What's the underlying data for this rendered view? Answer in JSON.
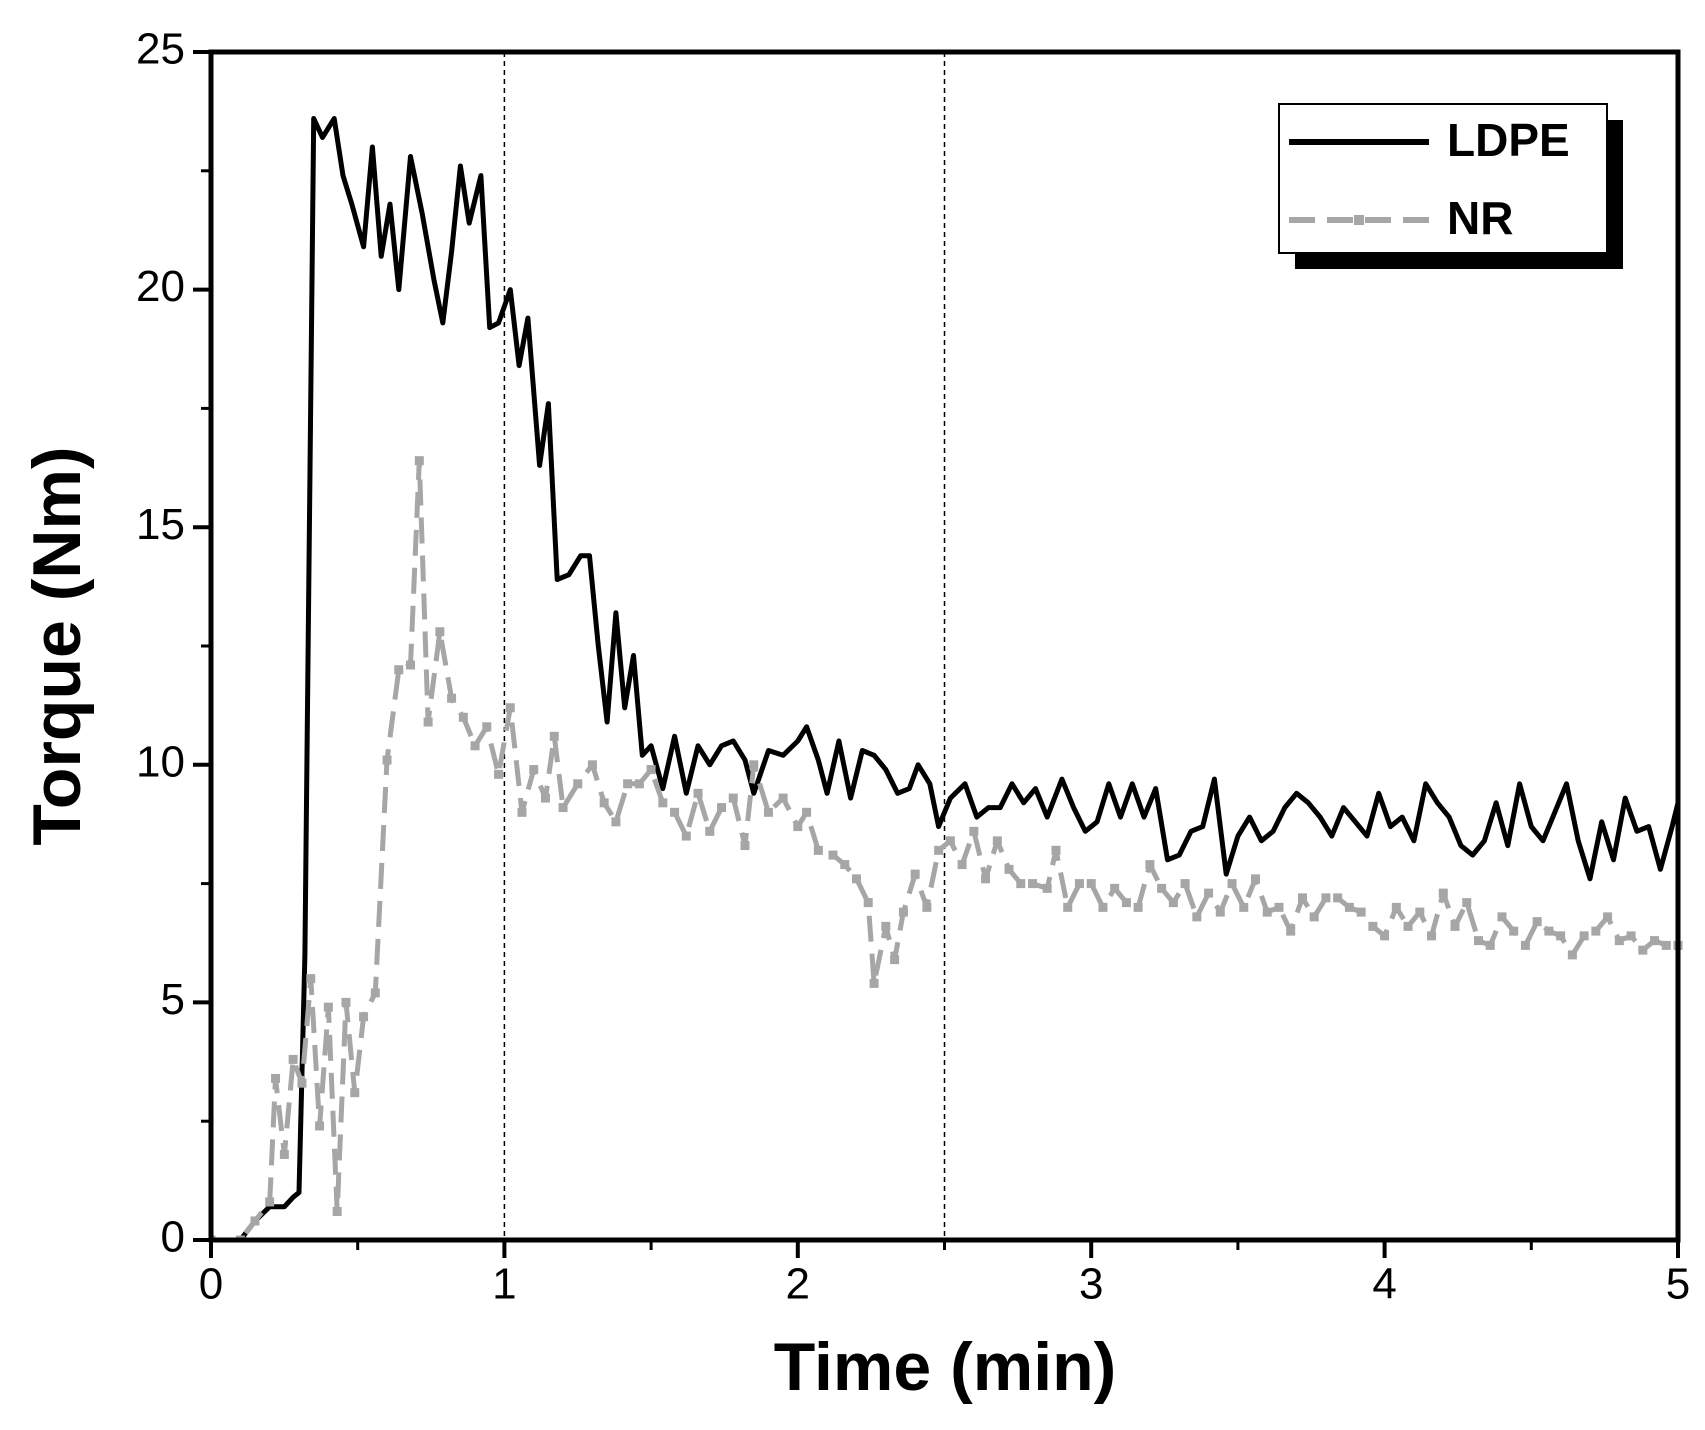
{
  "chart_data": {
    "type": "line",
    "x_label": "Time (min)",
    "y_label": "Torque (Nm)",
    "xlim": [
      0,
      5
    ],
    "ylim": [
      0,
      25
    ],
    "xticks": [
      0,
      1,
      2,
      3,
      4,
      5
    ],
    "yticks": [
      0,
      5,
      10,
      15,
      20,
      25
    ],
    "reference_lines_x": [
      1,
      2.5
    ],
    "legend": "upper right",
    "series": [
      {
        "name": "LDPE",
        "color": "#000000",
        "style": "solid",
        "markers": false,
        "x": [
          0.1,
          0.15,
          0.2,
          0.25,
          0.28,
          0.3,
          0.32,
          0.35,
          0.38,
          0.42,
          0.45,
          0.48,
          0.52,
          0.55,
          0.58,
          0.61,
          0.64,
          0.68,
          0.72,
          0.76,
          0.79,
          0.82,
          0.85,
          0.88,
          0.92,
          0.95,
          0.98,
          1.02,
          1.05,
          1.08,
          1.12,
          1.15,
          1.18,
          1.22,
          1.26,
          1.29,
          1.32,
          1.35,
          1.38,
          1.41,
          1.44,
          1.47,
          1.5,
          1.54,
          1.58,
          1.62,
          1.66,
          1.7,
          1.74,
          1.78,
          1.82,
          1.85,
          1.9,
          1.95,
          2.0,
          2.03,
          2.07,
          2.1,
          2.14,
          2.18,
          2.22,
          2.26,
          2.3,
          2.34,
          2.38,
          2.41,
          2.45,
          2.48,
          2.52,
          2.57,
          2.61,
          2.65,
          2.69,
          2.73,
          2.77,
          2.81,
          2.85,
          2.9,
          2.94,
          2.98,
          3.02,
          3.06,
          3.1,
          3.14,
          3.18,
          3.22,
          3.26,
          3.3,
          3.34,
          3.38,
          3.42,
          3.46,
          3.5,
          3.54,
          3.58,
          3.62,
          3.66,
          3.7,
          3.74,
          3.78,
          3.82,
          3.86,
          3.9,
          3.94,
          3.98,
          4.02,
          4.06,
          4.1,
          4.14,
          4.18,
          4.22,
          4.26,
          4.3,
          4.34,
          4.38,
          4.42,
          4.46,
          4.5,
          4.54,
          4.58,
          4.62,
          4.66,
          4.7,
          4.74,
          4.78,
          4.82,
          4.86,
          4.9,
          4.94,
          4.98,
          5.0
        ],
        "values": [
          0,
          0.4,
          0.7,
          0.7,
          0.9,
          1.0,
          6,
          23.6,
          23.2,
          23.6,
          22.4,
          21.8,
          20.9,
          23.0,
          20.7,
          21.8,
          20.0,
          22.8,
          21.6,
          20.2,
          19.3,
          20.8,
          22.6,
          21.4,
          22.4,
          19.2,
          19.3,
          20.0,
          18.4,
          19.4,
          16.3,
          17.6,
          13.9,
          14.0,
          14.4,
          14.4,
          12.5,
          10.9,
          13.2,
          11.2,
          12.3,
          10.2,
          10.4,
          9.5,
          10.6,
          9.4,
          10.4,
          10.0,
          10.4,
          10.5,
          10.1,
          9.4,
          10.3,
          10.2,
          10.5,
          10.8,
          10.1,
          9.4,
          10.5,
          9.3,
          10.3,
          10.2,
          9.9,
          9.4,
          9.5,
          10.0,
          9.6,
          8.7,
          9.3,
          9.6,
          8.9,
          9.1,
          9.1,
          9.6,
          9.2,
          9.5,
          8.9,
          9.7,
          9.1,
          8.6,
          8.8,
          9.6,
          8.9,
          9.6,
          8.9,
          9.5,
          8.0,
          8.1,
          8.6,
          8.7,
          9.7,
          7.7,
          8.5,
          8.9,
          8.4,
          8.6,
          9.1,
          9.4,
          9.2,
          8.9,
          8.5,
          9.1,
          8.8,
          8.5,
          9.4,
          8.7,
          8.9,
          8.4,
          9.6,
          9.2,
          8.9,
          8.3,
          8.1,
          8.4,
          9.2,
          8.3,
          9.6,
          8.7,
          8.4,
          9.0,
          9.6,
          8.4,
          7.6,
          8.8,
          8.0,
          9.3,
          8.6,
          8.7,
          7.8,
          8.7,
          9.2
        ]
      },
      {
        "name": "NR",
        "color": "#a6a6a6",
        "style": "dashed",
        "markers": true,
        "x": [
          0,
          0.1,
          0.15,
          0.2,
          0.22,
          0.25,
          0.28,
          0.31,
          0.34,
          0.37,
          0.4,
          0.43,
          0.46,
          0.49,
          0.52,
          0.56,
          0.6,
          0.64,
          0.68,
          0.71,
          0.74,
          0.78,
          0.82,
          0.86,
          0.9,
          0.94,
          0.98,
          1.02,
          1.06,
          1.1,
          1.14,
          1.17,
          1.2,
          1.25,
          1.3,
          1.34,
          1.38,
          1.42,
          1.46,
          1.5,
          1.54,
          1.58,
          1.62,
          1.66,
          1.7,
          1.74,
          1.78,
          1.82,
          1.85,
          1.9,
          1.95,
          2.0,
          2.03,
          2.07,
          2.12,
          2.16,
          2.2,
          2.24,
          2.26,
          2.3,
          2.33,
          2.36,
          2.4,
          2.44,
          2.48,
          2.52,
          2.56,
          2.6,
          2.64,
          2.68,
          2.72,
          2.76,
          2.8,
          2.85,
          2.88,
          2.92,
          2.96,
          3.0,
          3.04,
          3.08,
          3.12,
          3.16,
          3.2,
          3.24,
          3.28,
          3.32,
          3.36,
          3.4,
          3.44,
          3.48,
          3.52,
          3.56,
          3.6,
          3.64,
          3.68,
          3.72,
          3.76,
          3.8,
          3.84,
          3.88,
          3.92,
          3.96,
          4.0,
          4.04,
          4.08,
          4.12,
          4.16,
          4.2,
          4.24,
          4.28,
          4.32,
          4.36,
          4.4,
          4.44,
          4.48,
          4.52,
          4.56,
          4.6,
          4.64,
          4.68,
          4.72,
          4.76,
          4.8,
          4.84,
          4.88,
          4.92,
          4.96,
          5.0
        ],
        "values": [
          0,
          0,
          0.4,
          0.8,
          3.4,
          1.8,
          3.8,
          3.3,
          5.5,
          2.4,
          4.9,
          0.6,
          5.0,
          3.1,
          4.7,
          5.2,
          10.1,
          12.0,
          12.1,
          16.4,
          10.9,
          12.8,
          11.4,
          11.0,
          10.4,
          10.8,
          9.8,
          11.2,
          9.0,
          9.9,
          9.3,
          10.6,
          9.1,
          9.6,
          10.0,
          9.2,
          8.8,
          9.6,
          9.6,
          9.9,
          9.2,
          9.0,
          8.5,
          9.4,
          8.6,
          9.1,
          9.3,
          8.3,
          10.0,
          9.0,
          9.3,
          8.7,
          9.0,
          8.2,
          8.1,
          7.9,
          7.6,
          7.1,
          5.4,
          6.6,
          5.9,
          6.9,
          7.7,
          7.0,
          8.2,
          8.4,
          7.9,
          8.6,
          7.6,
          8.4,
          7.8,
          7.5,
          7.5,
          7.4,
          8.2,
          7.0,
          7.5,
          7.5,
          7.0,
          7.4,
          7.1,
          7.0,
          7.9,
          7.4,
          7.1,
          7.5,
          6.8,
          7.3,
          6.9,
          7.5,
          7.0,
          7.6,
          6.9,
          7.0,
          6.5,
          7.2,
          6.8,
          7.2,
          7.2,
          7.0,
          6.9,
          6.6,
          6.4,
          7.0,
          6.6,
          6.9,
          6.4,
          7.3,
          6.6,
          7.1,
          6.3,
          6.2,
          6.8,
          6.5,
          6.2,
          6.7,
          6.5,
          6.4,
          6.0,
          6.4,
          6.5,
          6.8,
          6.3,
          6.4,
          6.1,
          6.3,
          6.2,
          6.2
        ]
      }
    ]
  }
}
